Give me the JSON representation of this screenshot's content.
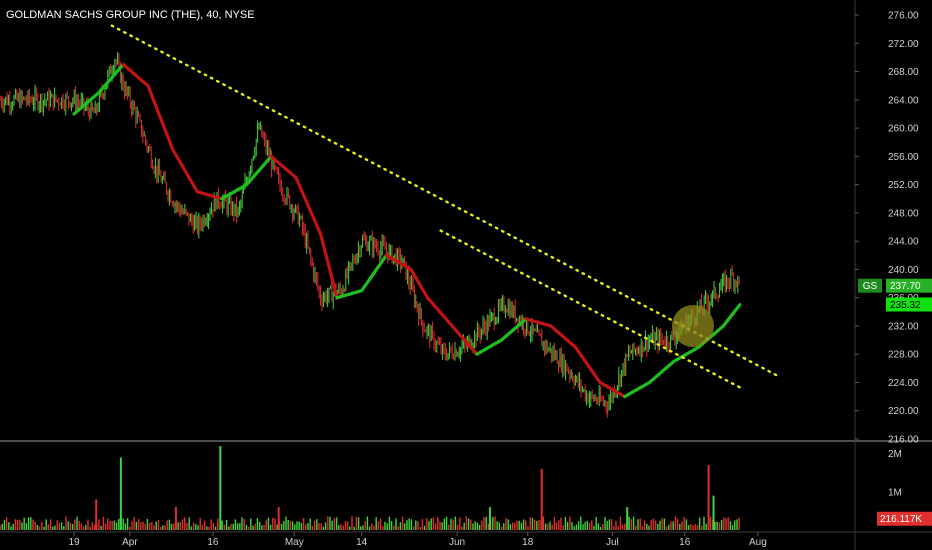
{
  "header": {
    "symbol_title": "GOLDMAN SACHS GROUP INC (THE), 40, NYSE"
  },
  "colors": {
    "up": "#3fd63f",
    "down": "#e0302e",
    "ma_up": "#1fbf1f",
    "ma_down": "#c21414",
    "trendline": "#e8ec1a",
    "highlight": "#8f8a1c",
    "background": "#000000"
  },
  "price_tags": {
    "symbol": "GS",
    "last_price": "237.70",
    "ma_value": "235.32"
  },
  "volume_tags": {
    "last_volume": "216.117K"
  },
  "chart_data": [
    {
      "type": "line",
      "title": "GOLDMAN SACHS GROUP INC (THE), 40, NYSE",
      "xlabel": "",
      "ylabel": "",
      "ylim": [
        216,
        277
      ],
      "y_ticks": [
        216,
        220,
        224,
        228,
        232,
        236,
        240,
        244,
        248,
        252,
        256,
        260,
        264,
        268,
        272,
        276
      ],
      "y_tick_labels": [
        "216.00",
        "220.00",
        "224.00",
        "228.00",
        "232.00",
        "236.00",
        "240.00",
        "244.00",
        "248.00",
        "252.00",
        "256.00",
        "260.00",
        "264.00",
        "268.00",
        "272.00",
        "276.00"
      ],
      "x_ticks": [
        "19",
        "Apr",
        "16",
        "May",
        "14",
        "Jun",
        "18",
        "Jul",
        "16",
        "Aug"
      ],
      "x_tick_index": [
        0.0,
        0.68,
        1.69,
        2.68,
        3.5,
        4.66,
        5.52,
        6.55,
        7.43,
        8.32
      ],
      "price_series": {
        "name": "GS",
        "x": [
          0,
          0.25,
          0.5,
          0.6,
          0.75,
          1.0,
          1.25,
          1.5,
          1.75,
          2.0,
          2.25,
          2.5,
          2.75,
          3.0,
          3.25,
          3.5,
          3.75,
          4.0,
          4.25,
          4.5,
          4.75,
          5.0,
          5.25,
          5.5,
          5.75,
          6.0,
          6.25,
          6.5,
          6.75,
          7.0,
          7.25,
          7.5,
          7.75,
          8.0,
          8.1
        ],
        "values": [
          264,
          262,
          270,
          266,
          262,
          254,
          249,
          246,
          250,
          248,
          260,
          252,
          247,
          236,
          237,
          244,
          243,
          241,
          232,
          228,
          229,
          232,
          235,
          232,
          229,
          226,
          222,
          221,
          228,
          230,
          230,
          233,
          236,
          239,
          238
        ]
      },
      "ma_series": {
        "name": "MA",
        "x": [
          0,
          0.3,
          0.6,
          0.9,
          1.2,
          1.5,
          1.8,
          2.1,
          2.4,
          2.7,
          3.0,
          3.2,
          3.5,
          3.8,
          4.1,
          4.3,
          4.6,
          4.9,
          5.2,
          5.5,
          5.8,
          6.1,
          6.4,
          6.7,
          7.0,
          7.3,
          7.6,
          7.9,
          8.1
        ],
        "values": [
          262,
          265,
          269,
          266,
          257,
          251,
          250,
          252,
          256,
          253,
          245,
          236,
          237,
          242,
          240,
          236,
          232,
          228,
          230,
          233,
          232,
          229,
          224,
          222,
          224,
          227,
          229,
          232,
          235
        ]
      },
      "trendlines": [
        {
          "x": [
            0.46,
            8.55
          ],
          "values": [
            274.5,
            225
          ]
        },
        {
          "x": [
            4.46,
            8.15
          ],
          "values": [
            245.5,
            223
          ]
        }
      ],
      "highlight": {
        "x": 7.53,
        "value": 232
      },
      "last_price": 237.7,
      "ma_last": 235.32
    },
    {
      "type": "bar",
      "title": "",
      "xlabel": "",
      "ylabel": "",
      "ylim": [
        0,
        2.2
      ],
      "y_ticks": [
        1,
        2
      ],
      "y_tick_labels": [
        "1M",
        "2M"
      ],
      "units": "M shares",
      "spikes": [
        {
          "x": 0.27,
          "value": 0.8
        },
        {
          "x": 0.57,
          "value": 1.9
        },
        {
          "x": 1.24,
          "value": 0.6
        },
        {
          "x": 1.78,
          "value": 2.4
        },
        {
          "x": 2.49,
          "value": 0.6
        },
        {
          "x": 5.06,
          "value": 0.6
        },
        {
          "x": 5.69,
          "value": 1.6
        },
        {
          "x": 6.73,
          "value": 0.6
        },
        {
          "x": 7.72,
          "value": 1.7
        },
        {
          "x": 7.78,
          "value": 0.9
        }
      ],
      "last_volume": 0.216117
    }
  ]
}
